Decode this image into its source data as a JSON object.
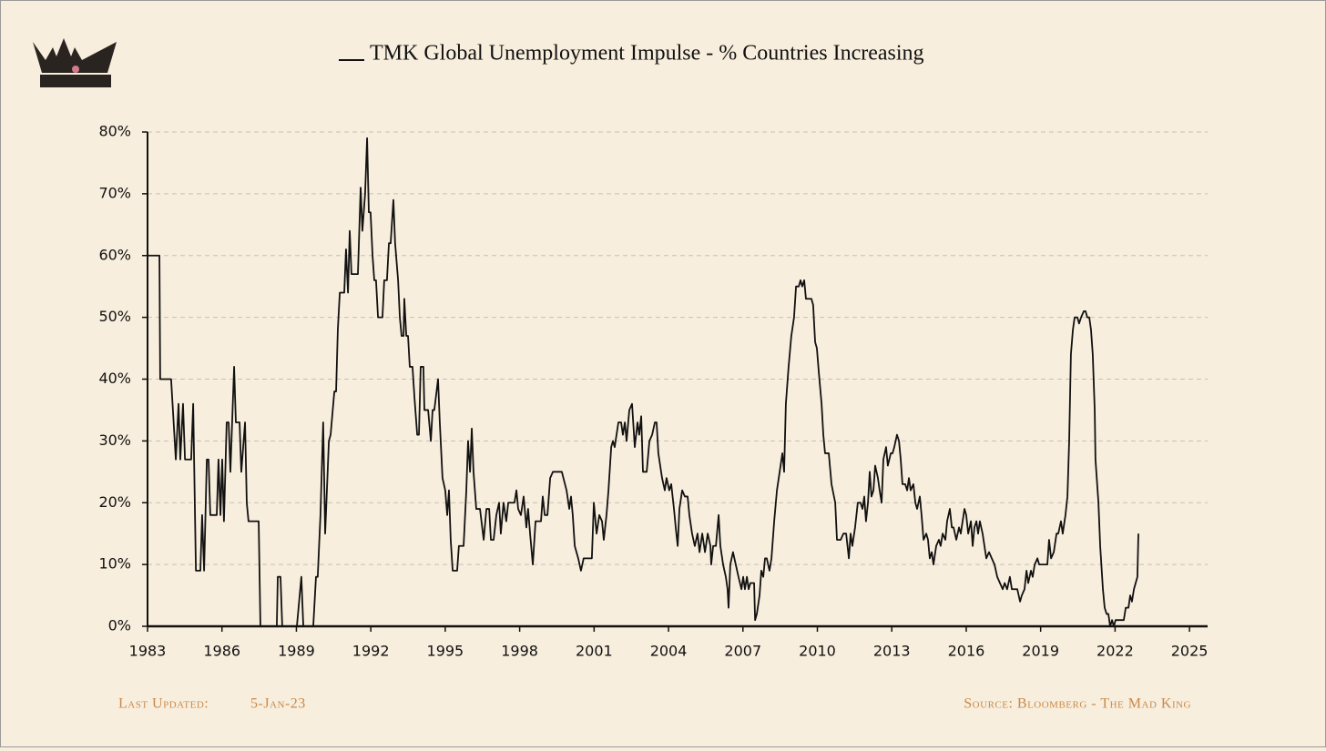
{
  "chart_data": {
    "type": "line",
    "series": [
      {
        "name": "TMK Global Unemployment Impulse - % Countries Increasing",
        "color": "#111111",
        "values": [
          60,
          60,
          40,
          40,
          27,
          36,
          27,
          36,
          27,
          27,
          36,
          9,
          9,
          18,
          9,
          27,
          27,
          18,
          18,
          27,
          18,
          27,
          17,
          33,
          33,
          25,
          42,
          33,
          33,
          25,
          33,
          20,
          17,
          17,
          0,
          0,
          8,
          8,
          0,
          0,
          8,
          0,
          0,
          8,
          8,
          18,
          33,
          15,
          30,
          31,
          38,
          38,
          48,
          54,
          54,
          61,
          54,
          64,
          57,
          57,
          71,
          64,
          70,
          79,
          67,
          67,
          60,
          56,
          56,
          50,
          50,
          56,
          56,
          62,
          62,
          69,
          62,
          56,
          50,
          47,
          47,
          53,
          47,
          47,
          42,
          42,
          37,
          31,
          31,
          42,
          42,
          35,
          35,
          30,
          35,
          35,
          40,
          33,
          24,
          22,
          18,
          22,
          14,
          9,
          9,
          13,
          13,
          22,
          30,
          25,
          32,
          25,
          19,
          19,
          14,
          19,
          19,
          14,
          14,
          18,
          20,
          15,
          20,
          17,
          20,
          20,
          22,
          19,
          18,
          21,
          16,
          19,
          15,
          10,
          17,
          17,
          21,
          18,
          18,
          24,
          25,
          25,
          22,
          19,
          21,
          18,
          13,
          11,
          9,
          11,
          11,
          20,
          15,
          18,
          17,
          14,
          18,
          22,
          29,
          30,
          29,
          33,
          33,
          31,
          33,
          30,
          35,
          36,
          29,
          33,
          31,
          34,
          25,
          25,
          30,
          31,
          33,
          33,
          28,
          24,
          22,
          24,
          22,
          23,
          19,
          16,
          13,
          19,
          22,
          21,
          21,
          18,
          15,
          13,
          15,
          12,
          15,
          12,
          15,
          13,
          10,
          13,
          13,
          18,
          13,
          10,
          8,
          6,
          3,
          10,
          12,
          10,
          8,
          6,
          8,
          6,
          8,
          6,
          7,
          7,
          1,
          2,
          5,
          9,
          8,
          11,
          11,
          9,
          11,
          17,
          22,
          25,
          28,
          25,
          36,
          42,
          47,
          50,
          55,
          55,
          56,
          55,
          56,
          53,
          53,
          52,
          46,
          45,
          41,
          36,
          31,
          28,
          28,
          23,
          20,
          14,
          14,
          15,
          15,
          11,
          15,
          13,
          16,
          20,
          20,
          19,
          21,
          17,
          20,
          25,
          21,
          22,
          26,
          24,
          22,
          20,
          27,
          29,
          26,
          28,
          28,
          29,
          31,
          30,
          27,
          23,
          23,
          22,
          24,
          22,
          23,
          20,
          19,
          21,
          18,
          14,
          15,
          14,
          11,
          12,
          10,
          13,
          14,
          13,
          15,
          14,
          17,
          19,
          16,
          16,
          14,
          16,
          15,
          19,
          18,
          15,
          17,
          13,
          16,
          17,
          15,
          17,
          15,
          11,
          12,
          11,
          10,
          8,
          7,
          6,
          7,
          6,
          8,
          6,
          6,
          6,
          4,
          5,
          6,
          9,
          7,
          9,
          8,
          10,
          11,
          10,
          10,
          10,
          14,
          11,
          12,
          15,
          15,
          17,
          15,
          18,
          21,
          30,
          44,
          48,
          50,
          50,
          49,
          50,
          51,
          51,
          50,
          50,
          48,
          44,
          35,
          27,
          20,
          13,
          6,
          3,
          2,
          2,
          0,
          1,
          0,
          1,
          1,
          3,
          3,
          5,
          4,
          6,
          7,
          8,
          15
        ]
      }
    ],
    "x": [
      1983.0,
      1983.48,
      1983.51,
      1983.95,
      1984.14,
      1984.25,
      1984.32,
      1984.43,
      1984.51,
      1984.76,
      1984.84,
      1984.95,
      1985.13,
      1985.2,
      1985.28,
      1985.39,
      1985.46,
      1985.53,
      1985.79,
      1985.86,
      1985.94,
      1986.01,
      1986.08,
      1986.19,
      1986.27,
      1986.34,
      1986.49,
      1986.56,
      1986.71,
      1986.78,
      1986.93,
      1987.0,
      1987.07,
      1987.48,
      1987.55,
      1988.21,
      1988.25,
      1988.36,
      1988.43,
      1989.02,
      1989.2,
      1989.28,
      1989.68,
      1989.79,
      1989.86,
      1989.97,
      1990.08,
      1990.16,
      1990.31,
      1990.38,
      1990.53,
      1990.6,
      1990.67,
      1990.75,
      1990.93,
      1991.0,
      1991.08,
      1991.15,
      1991.22,
      1991.48,
      1991.59,
      1991.66,
      1991.77,
      1991.85,
      1991.92,
      1991.99,
      1992.07,
      1992.14,
      1992.21,
      1992.29,
      1992.47,
      1992.54,
      1992.65,
      1992.73,
      1992.8,
      1992.91,
      1992.98,
      1993.1,
      1993.17,
      1993.24,
      1993.32,
      1993.35,
      1993.43,
      1993.5,
      1993.57,
      1993.68,
      1993.76,
      1993.87,
      1993.94,
      1994.01,
      1994.12,
      1994.16,
      1994.31,
      1994.42,
      1994.49,
      1994.56,
      1994.71,
      1994.78,
      1994.89,
      1995.0,
      1995.08,
      1995.15,
      1995.22,
      1995.3,
      1995.48,
      1995.55,
      1995.74,
      1995.85,
      1995.92,
      1996.0,
      1996.07,
      1996.14,
      1996.25,
      1996.4,
      1996.55,
      1996.66,
      1996.77,
      1996.84,
      1996.95,
      1997.06,
      1997.17,
      1997.24,
      1997.35,
      1997.46,
      1997.54,
      1997.79,
      1997.87,
      1997.94,
      1998.05,
      1998.16,
      1998.27,
      1998.34,
      1998.42,
      1998.53,
      1998.64,
      1998.86,
      1998.93,
      1999.01,
      1999.12,
      1999.23,
      1999.34,
      1999.7,
      1999.89,
      2000.0,
      2000.07,
      2000.14,
      2000.22,
      2000.36,
      2000.47,
      2000.58,
      2000.91,
      2000.99,
      2001.1,
      2001.21,
      2001.32,
      2001.39,
      2001.5,
      2001.58,
      2001.69,
      2001.76,
      2001.83,
      2001.98,
      2002.09,
      2002.16,
      2002.24,
      2002.31,
      2002.42,
      2002.53,
      2002.64,
      2002.75,
      2002.82,
      2002.9,
      2002.97,
      2003.12,
      2003.23,
      2003.34,
      2003.45,
      2003.52,
      2003.59,
      2003.74,
      2003.85,
      2003.92,
      2004.03,
      2004.11,
      2004.22,
      2004.29,
      2004.37,
      2004.44,
      2004.55,
      2004.66,
      2004.77,
      2004.84,
      2004.95,
      2005.06,
      2005.17,
      2005.25,
      2005.36,
      2005.47,
      2005.58,
      2005.69,
      2005.72,
      2005.8,
      2005.91,
      2006.02,
      2006.09,
      2006.2,
      2006.31,
      2006.38,
      2006.42,
      2006.49,
      2006.6,
      2006.71,
      2006.82,
      2006.94,
      2007.01,
      2007.08,
      2007.16,
      2007.23,
      2007.3,
      2007.45,
      2007.49,
      2007.56,
      2007.67,
      2007.74,
      2007.82,
      2007.89,
      2007.96,
      2008.07,
      2008.15,
      2008.26,
      2008.37,
      2008.48,
      2008.59,
      2008.66,
      2008.73,
      2008.84,
      2008.95,
      2009.06,
      2009.14,
      2009.25,
      2009.32,
      2009.39,
      2009.47,
      2009.54,
      2009.76,
      2009.83,
      2009.91,
      2009.98,
      2010.06,
      2010.17,
      2010.24,
      2010.31,
      2010.46,
      2010.57,
      2010.72,
      2010.79,
      2010.94,
      2011.05,
      2011.16,
      2011.27,
      2011.34,
      2011.41,
      2011.52,
      2011.63,
      2011.74,
      2011.82,
      2011.89,
      2011.96,
      2012.04,
      2012.11,
      2012.18,
      2012.26,
      2012.33,
      2012.44,
      2012.51,
      2012.59,
      2012.66,
      2012.77,
      2012.84,
      2012.96,
      2013.03,
      2013.1,
      2013.21,
      2013.29,
      2013.36,
      2013.43,
      2013.54,
      2013.62,
      2013.69,
      2013.76,
      2013.87,
      2013.95,
      2014.02,
      2014.13,
      2014.2,
      2014.28,
      2014.39,
      2014.46,
      2014.53,
      2014.61,
      2014.68,
      2014.79,
      2014.9,
      2014.97,
      2015.05,
      2015.16,
      2015.23,
      2015.34,
      2015.42,
      2015.49,
      2015.6,
      2015.71,
      2015.78,
      2015.93,
      2016.0,
      2016.08,
      2016.19,
      2016.26,
      2016.33,
      2016.41,
      2016.48,
      2016.55,
      2016.66,
      2016.81,
      2016.92,
      2017.03,
      2017.14,
      2017.25,
      2017.36,
      2017.47,
      2017.55,
      2017.65,
      2017.76,
      2017.84,
      2017.91,
      2018.06,
      2018.17,
      2018.24,
      2018.35,
      2018.43,
      2018.5,
      2018.61,
      2018.68,
      2018.76,
      2018.87,
      2018.94,
      2019.05,
      2019.27,
      2019.34,
      2019.42,
      2019.53,
      2019.64,
      2019.71,
      2019.82,
      2019.89,
      2020.0,
      2020.08,
      2020.15,
      2020.22,
      2020.3,
      2020.37,
      2020.48,
      2020.55,
      2020.63,
      2020.74,
      2020.81,
      2020.88,
      2020.96,
      2021.03,
      2021.1,
      2021.18,
      2021.21,
      2021.33,
      2021.4,
      2021.51,
      2021.58,
      2021.66,
      2021.73,
      2021.8,
      2021.88,
      2021.95,
      2022.02,
      2022.35,
      2022.43,
      2022.54,
      2022.61,
      2022.68,
      2022.76,
      2022.83,
      2022.9,
      2022.94
    ],
    "xlim": [
      1983,
      2025.73
    ],
    "xticks": [
      1983,
      1986,
      1989,
      1992,
      1995,
      1998,
      2001,
      2004,
      2007,
      2010,
      2013,
      2016,
      2019,
      2022,
      2025
    ],
    "ylim": [
      0,
      80
    ],
    "yticks": [
      {
        "value": 0,
        "label": "0%"
      },
      {
        "value": 10,
        "label": "10%"
      },
      {
        "value": 20,
        "label": "20%"
      },
      {
        "value": 30,
        "label": "30%"
      },
      {
        "value": 40,
        "label": "40%"
      },
      {
        "value": 50,
        "label": "50%"
      },
      {
        "value": 60,
        "label": "60%"
      },
      {
        "value": 70,
        "label": "70%"
      },
      {
        "value": 80,
        "label": "80%"
      }
    ],
    "grid": true,
    "footer_left_label": "Last Updated:",
    "footer_left_date": "5-Jan-23",
    "footer_right": "Source: Bloomberg - The Mad King"
  }
}
